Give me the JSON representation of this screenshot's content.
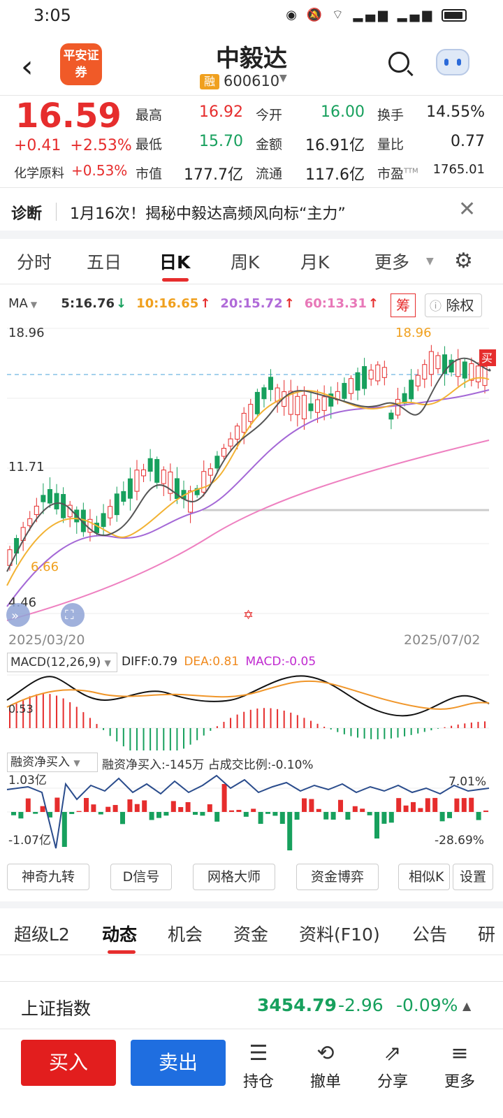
{
  "status_bar": {
    "time": "3:05"
  },
  "header": {
    "title": "中毅达",
    "logo_text": "平安证券",
    "margin_badge": "融",
    "code": "600610"
  },
  "quote": {
    "price": "16.59",
    "change": "+0.41",
    "change_pct": "+2.53%",
    "sector_name": "化学原料",
    "sector_pct": "+0.53%",
    "stats": [
      {
        "label": "最高",
        "value": "16.92",
        "color": "red"
      },
      {
        "label": "今开",
        "value": "16.00",
        "color": "green"
      },
      {
        "label": "换手",
        "value": "14.55%",
        "color": "dark"
      },
      {
        "label": "最低",
        "value": "15.70",
        "color": "green"
      },
      {
        "label": "金额",
        "value": "16.91亿",
        "color": "dark"
      },
      {
        "label": "量比",
        "value": "0.77",
        "color": "dark"
      },
      {
        "label": "市值",
        "value": "177.7亿",
        "color": "dark"
      },
      {
        "label": "流通",
        "value": "117.6亿",
        "color": "dark"
      },
      {
        "label": "市盈",
        "value": "1765.01",
        "color": "dark",
        "superscript": "TTM"
      }
    ]
  },
  "diagnosis": {
    "label": "诊断",
    "text": "1月16次！揭秘中毅达高频风向标“主力”"
  },
  "period_tabs": [
    "分时",
    "五日",
    "日K",
    "周K",
    "月K",
    "更多"
  ],
  "chart_controls": {
    "ma_label": "MA",
    "ma_values": [
      {
        "text": "5:16.76",
        "arrow": "↓",
        "color": "#17a05d",
        "text_color": "#333"
      },
      {
        "text": "10:16.65",
        "arrow": "↑",
        "color": "#e62d2d",
        "text_color": "#f0a01e"
      },
      {
        "text": "20:15.72",
        "arrow": "↑",
        "color": "#e62d2d",
        "text_color": "#b06ad8"
      },
      {
        "text": "60:13.31",
        "arrow": "↑",
        "color": "#e62d2d",
        "text_color": "#e878b8"
      }
    ],
    "chip_label": "筹",
    "exright_label": "除权",
    "buy_marker": "买"
  },
  "kline_axis": {
    "y_max": "18.96",
    "y_mid": "11.71",
    "y_min": "4.46",
    "high_marker": "18.96",
    "low_marker": "6.66",
    "date_start": "2025/03/20",
    "date_end": "2025/07/02"
  },
  "macd": {
    "selector": "MACD(12,26,9)",
    "diff": "DIFF:0.79",
    "dea": "DEA:0.81",
    "macd": "MACD:-0.05",
    "axis_label": "0.53"
  },
  "financing": {
    "selector": "融资净买入",
    "summary": "融资净买入:-145万 占成交比例:-0.10%",
    "y_max": "1.03亿",
    "y_min": "-1.07亿",
    "pct_max": "7.01%",
    "pct_min": "-28.69%"
  },
  "tools": [
    "神奇九转",
    "D信号",
    "网格大师",
    "资金博弈",
    "相似K",
    "设置"
  ],
  "bottom_tabs": [
    "超级L2",
    "动态",
    "机会",
    "资金",
    "资料(F10)",
    "公告",
    "研"
  ],
  "index": {
    "name": "上证指数",
    "value": "3454.79",
    "change": "-2.96",
    "change_pct": "-0.09%"
  },
  "actions": {
    "buy": "买入",
    "sell": "卖出",
    "items": [
      {
        "label": "持仓",
        "icon": "position-icon"
      },
      {
        "label": "撤单",
        "icon": "cancel-order-icon"
      },
      {
        "label": "分享",
        "icon": "share-icon"
      },
      {
        "label": "更多",
        "icon": "more-icon"
      }
    ]
  }
}
